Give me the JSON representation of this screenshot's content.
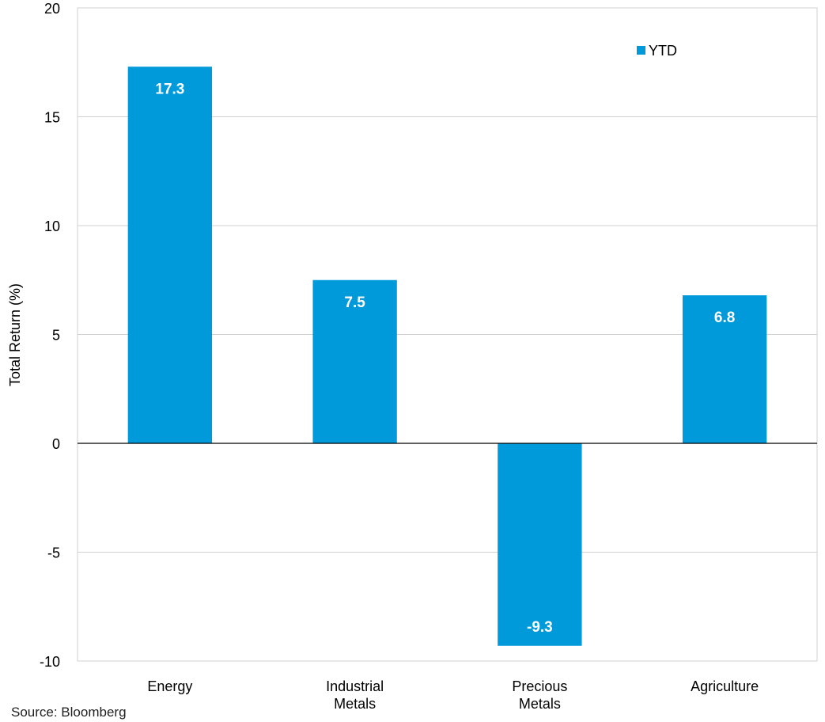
{
  "chart_data": {
    "type": "bar",
    "categories": [
      "Energy",
      "Industrial Metals",
      "Precious Metals",
      "Agriculture"
    ],
    "category_lines": [
      [
        "Energy"
      ],
      [
        "Industrial",
        "Metals"
      ],
      [
        "Precious",
        "Metals"
      ],
      [
        "Agriculture"
      ]
    ],
    "series": [
      {
        "name": "YTD",
        "values": [
          17.3,
          7.5,
          -9.3,
          6.8
        ],
        "data_labels": [
          "17.3",
          "7.5",
          "-9.3",
          "6.8"
        ]
      }
    ],
    "title": "",
    "xlabel": "",
    "ylabel": "Total Return (%)",
    "ylim": [
      -10,
      20
    ],
    "yticks": [
      20,
      15,
      10,
      5,
      0,
      -5,
      -10
    ],
    "grid": true,
    "legend": "top-right"
  },
  "colors": {
    "bar": "#009ADB",
    "grid": "#D0D0D0",
    "axis": "#000000",
    "text": "#000000",
    "data_label": "#FFFFFF"
  },
  "source": "Source:  Bloomberg"
}
